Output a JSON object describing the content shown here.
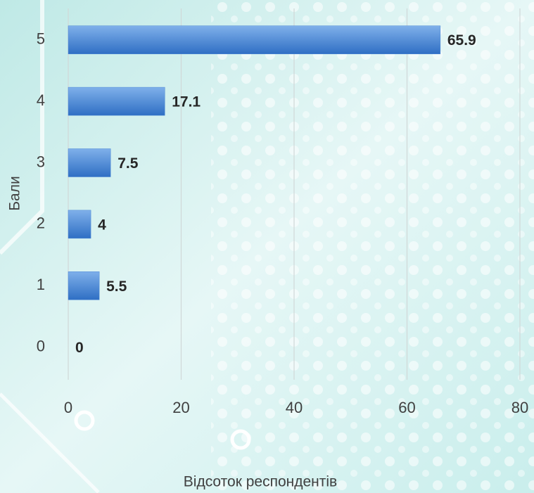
{
  "chart_data": {
    "type": "bar",
    "orientation": "horizontal",
    "x_label": "Відсоток респондентів",
    "y_label": "Бали",
    "categories": [
      "5",
      "4",
      "3",
      "2",
      "1",
      "0"
    ],
    "values": [
      65.9,
      17.1,
      7.5,
      4,
      5.5,
      0
    ],
    "color": "#4a86d4",
    "xlim": [
      0,
      80
    ],
    "xticks": [
      0,
      20,
      40,
      60,
      80
    ],
    "grid": true
  }
}
